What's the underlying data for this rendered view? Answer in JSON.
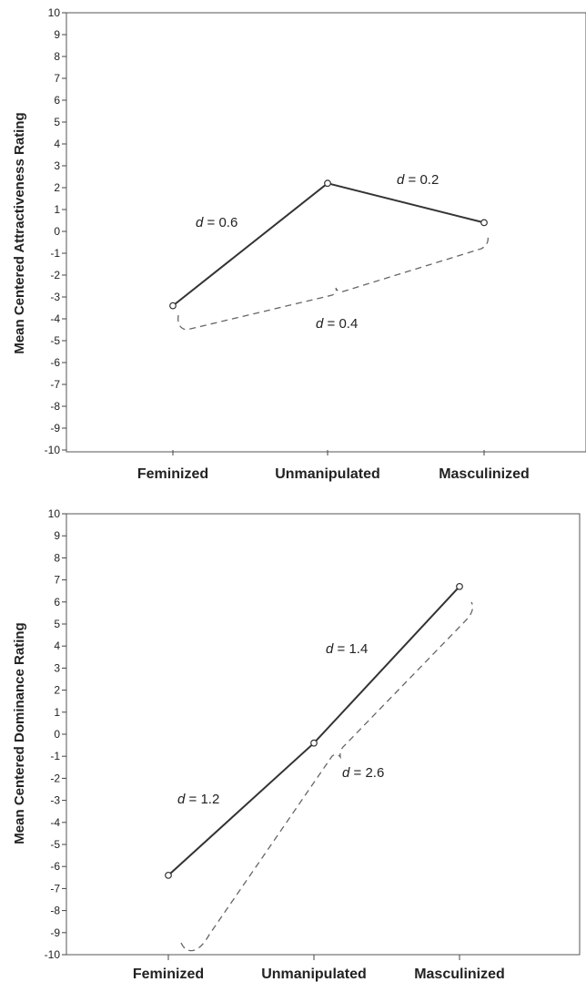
{
  "chart_data": [
    {
      "type": "line",
      "ylabel": "Mean Centered Attractiveness Rating",
      "xlabel": "",
      "categories": [
        "Feminized",
        "Unmanipulated",
        "Masculinized"
      ],
      "ylim": [
        -10,
        10
      ],
      "yticks": [
        10,
        9,
        8,
        7,
        6,
        5,
        4,
        3,
        2,
        1,
        0,
        -1,
        -2,
        -3,
        -4,
        -5,
        -6,
        -7,
        -8,
        -9,
        -10
      ],
      "values": [
        -3.4,
        2.2,
        0.4
      ],
      "annotations": [
        {
          "d_label": "d",
          "value_text": " = 0.6",
          "between": [
            "Feminized",
            "Unmanipulated"
          ]
        },
        {
          "d_label": "d",
          "value_text": " = 0.2",
          "between": [
            "Unmanipulated",
            "Masculinized"
          ]
        },
        {
          "d_label": "d",
          "value_text": " = 0.4",
          "between": [
            "Feminized",
            "Masculinized"
          ]
        }
      ],
      "grid": false
    },
    {
      "type": "line",
      "ylabel": "Mean Centered Dominance Rating",
      "xlabel": "",
      "categories": [
        "Feminized",
        "Unmanipulated",
        "Masculinized"
      ],
      "ylim": [
        -10,
        10
      ],
      "yticks": [
        10,
        9,
        8,
        7,
        6,
        5,
        4,
        3,
        2,
        1,
        0,
        -1,
        -2,
        -3,
        -4,
        -5,
        -6,
        -7,
        -8,
        -9,
        -10
      ],
      "values": [
        -6.4,
        -0.4,
        6.7
      ],
      "annotations": [
        {
          "d_label": "d",
          "value_text": " = 1.2",
          "between": [
            "Feminized",
            "Unmanipulated"
          ]
        },
        {
          "d_label": "d",
          "value_text": " = 1.4",
          "between": [
            "Unmanipulated",
            "Masculinized"
          ]
        },
        {
          "d_label": "d",
          "value_text": " = 2.6",
          "between": [
            "Feminized",
            "Masculinized"
          ]
        }
      ],
      "grid": false
    }
  ]
}
